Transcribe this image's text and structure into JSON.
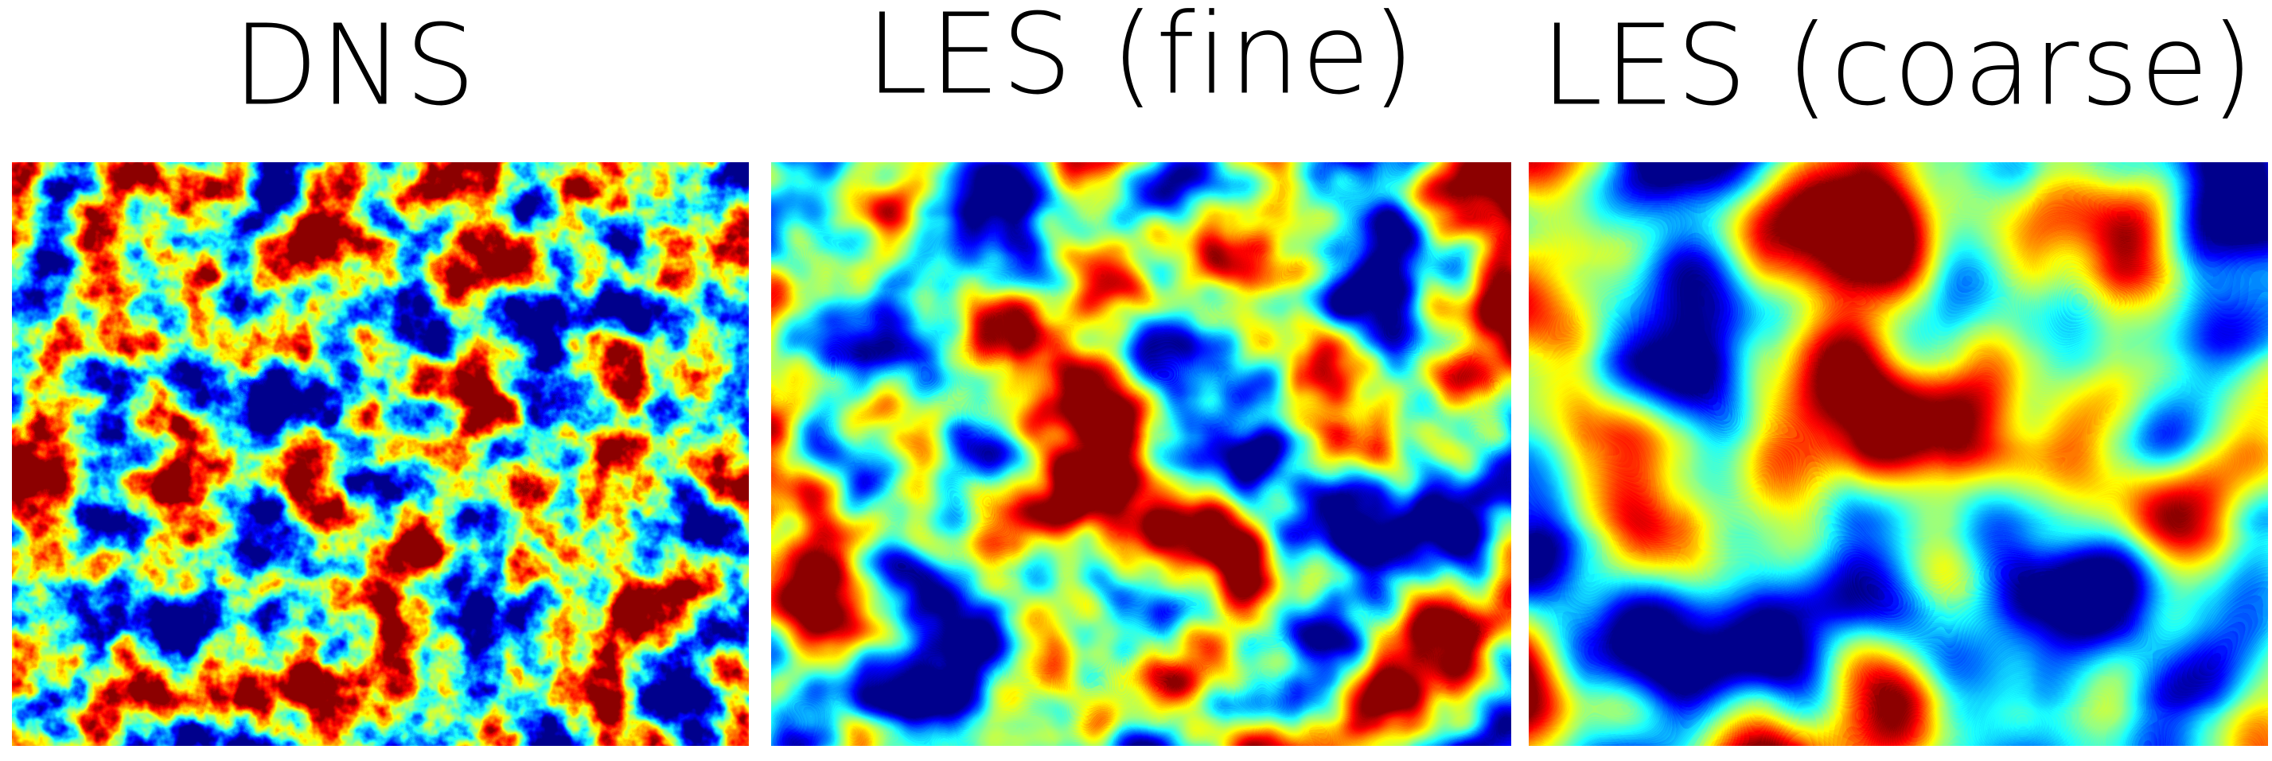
{
  "panels": [
    {
      "title": "DNS"
    },
    {
      "title": "LES (fine)"
    },
    {
      "title": "LES (coarse)"
    }
  ]
}
